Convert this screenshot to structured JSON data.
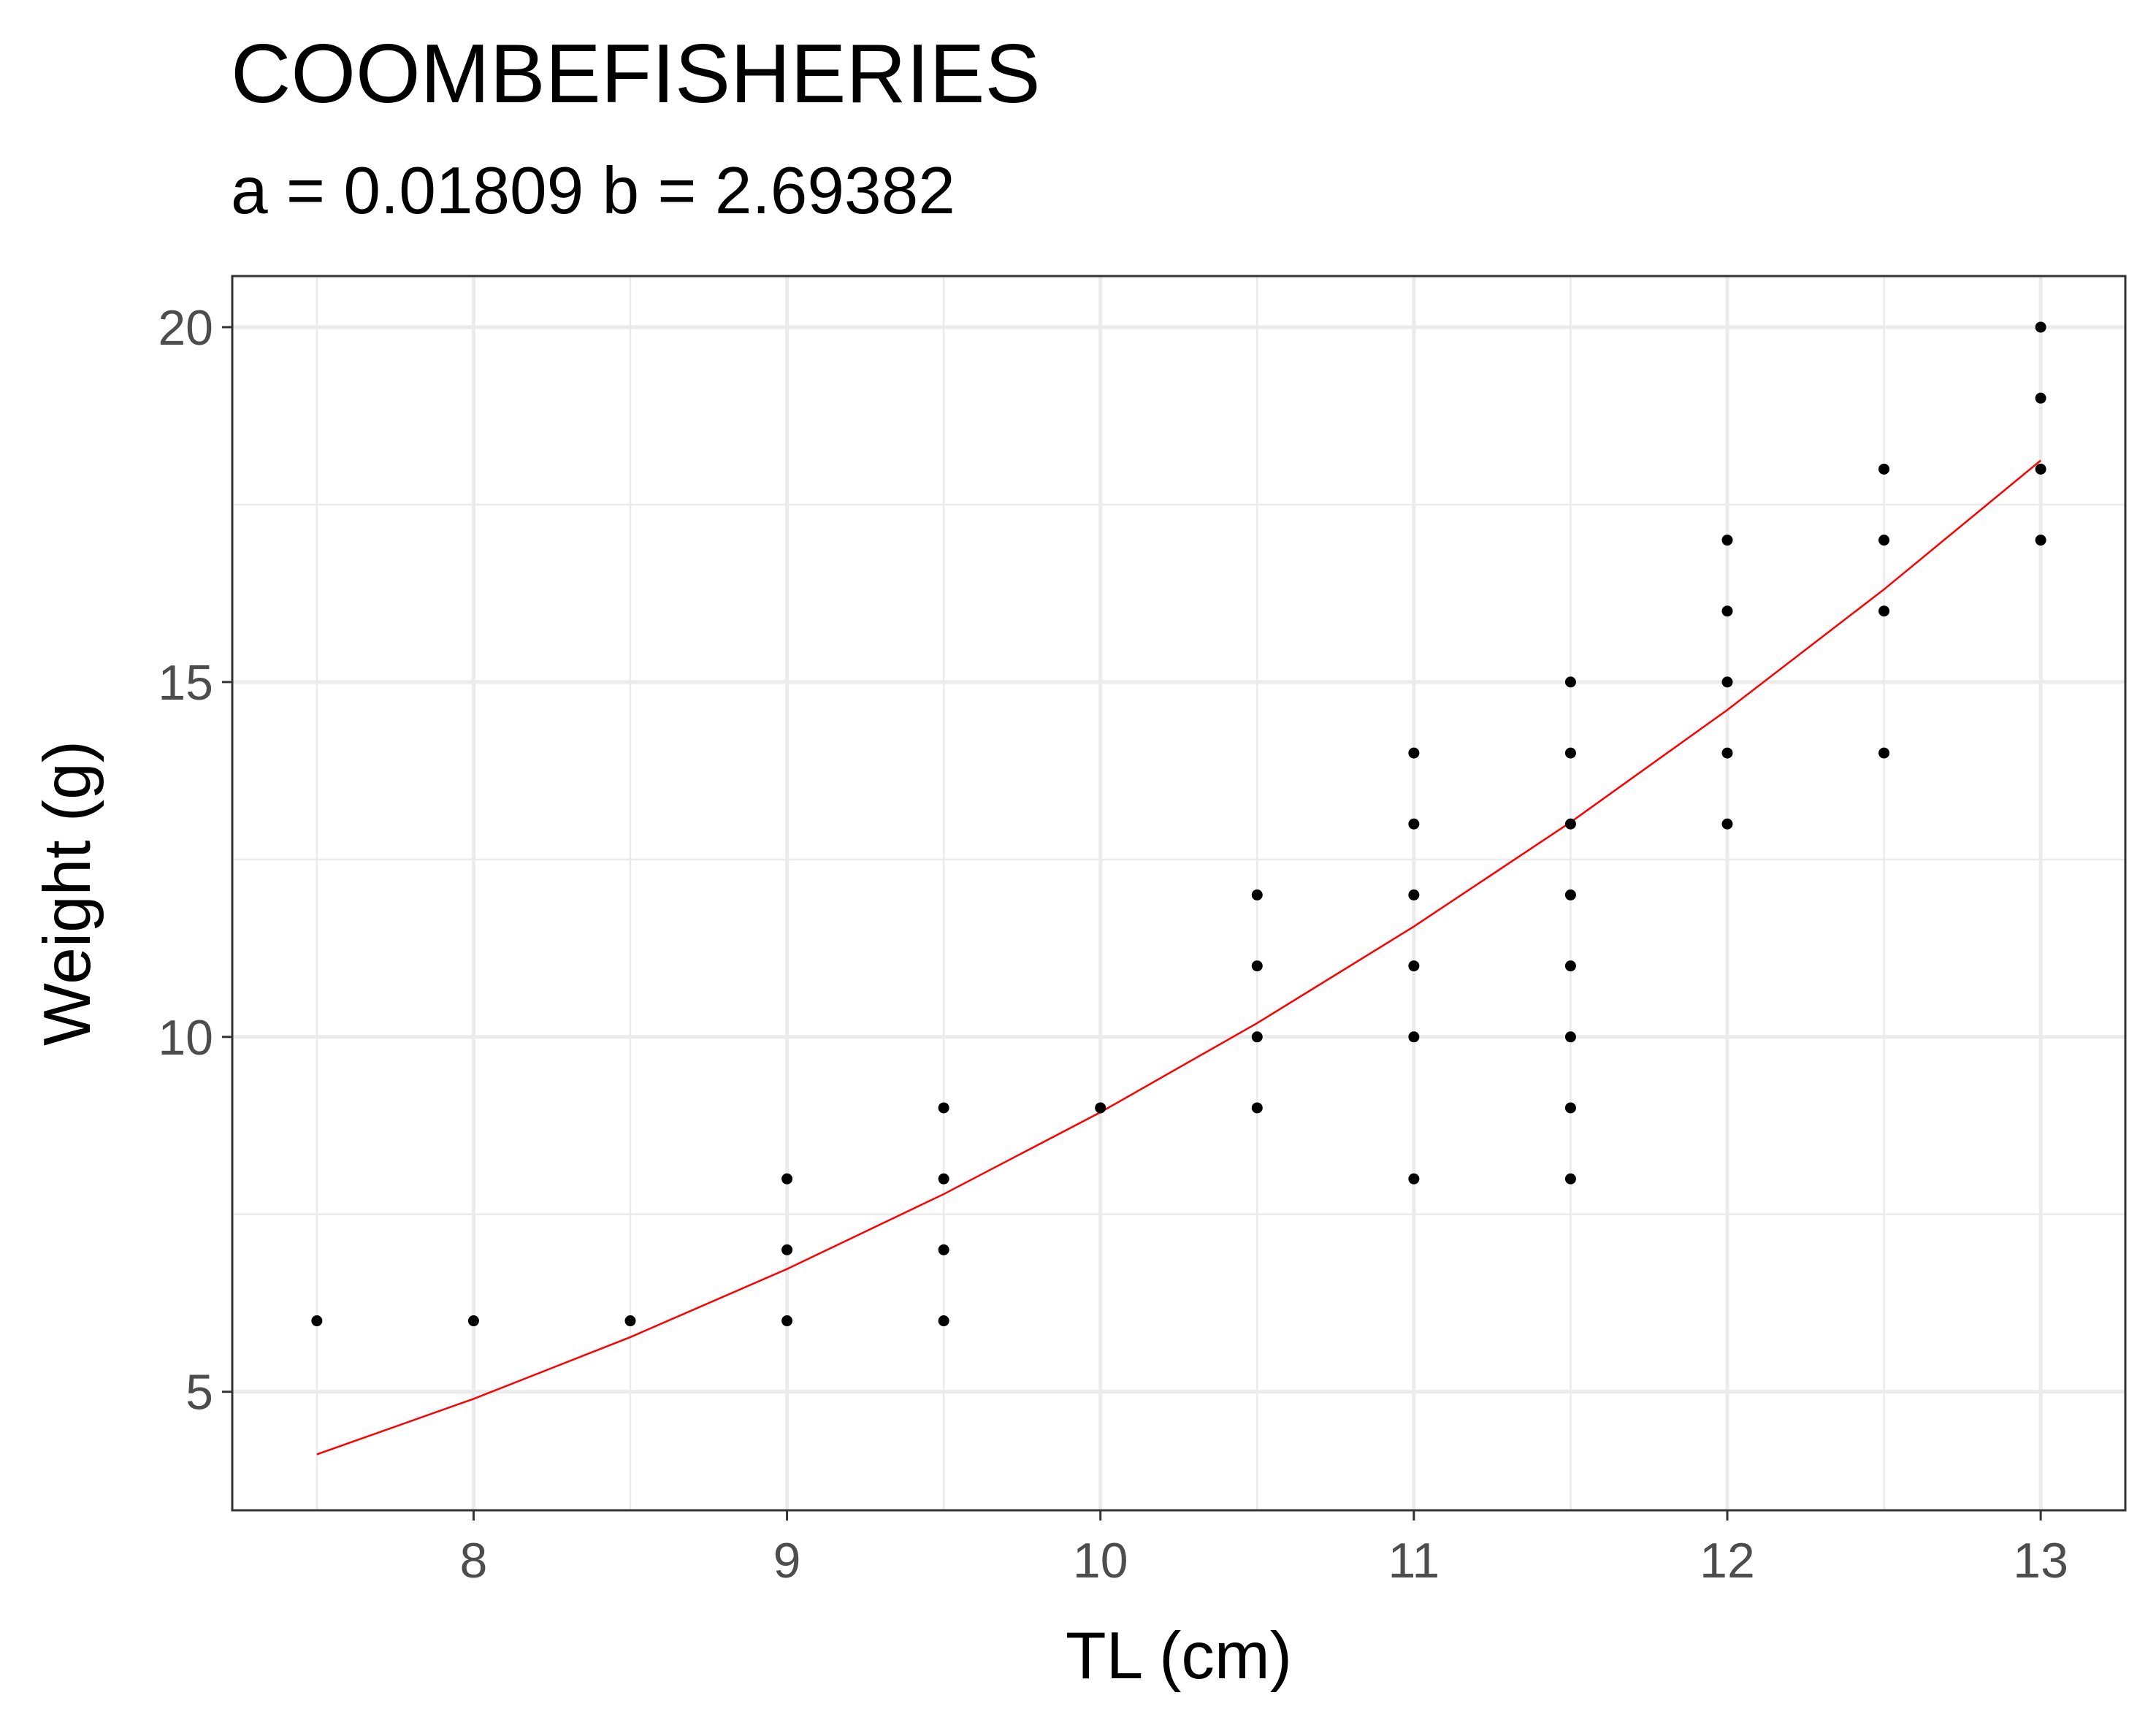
{
  "chart_data": {
    "type": "scatter",
    "title": "COOMBEFISHERIES",
    "subtitle": "a =  0.01809  b = 2.69382",
    "xlabel": "TL (cm)",
    "ylabel": "Weight (g)",
    "xlim": [
      7.23,
      13.27
    ],
    "ylim": [
      3.33,
      20.72
    ],
    "x_ticks": [
      8,
      9,
      10,
      11,
      12,
      13
    ],
    "y_ticks": [
      5,
      10,
      15,
      20
    ],
    "grid": true,
    "colors": {
      "points": "#000000",
      "fit_line": "#ff0000",
      "grid": "#ebebeb",
      "panel_border": "#333333"
    },
    "points": [
      [
        7.5,
        6
      ],
      [
        8,
        6
      ],
      [
        8.5,
        6
      ],
      [
        9,
        8
      ],
      [
        9,
        7
      ],
      [
        9,
        6
      ],
      [
        9.5,
        9
      ],
      [
        9.5,
        8
      ],
      [
        9.5,
        7
      ],
      [
        9.5,
        6
      ],
      [
        10,
        9
      ],
      [
        10.5,
        12
      ],
      [
        10.5,
        11
      ],
      [
        10.5,
        10
      ],
      [
        10.5,
        9
      ],
      [
        11,
        14
      ],
      [
        11,
        13
      ],
      [
        11,
        12
      ],
      [
        11,
        11
      ],
      [
        11,
        10
      ],
      [
        11,
        8
      ],
      [
        11.5,
        15
      ],
      [
        11.5,
        14
      ],
      [
        11.5,
        13
      ],
      [
        11.5,
        12
      ],
      [
        11.5,
        11
      ],
      [
        11.5,
        10
      ],
      [
        11.5,
        9
      ],
      [
        11.5,
        8
      ],
      [
        12,
        17
      ],
      [
        12,
        16
      ],
      [
        12,
        15
      ],
      [
        12,
        14
      ],
      [
        12,
        13
      ],
      [
        12.5,
        18
      ],
      [
        12.5,
        17
      ],
      [
        12.5,
        16
      ],
      [
        12.5,
        14
      ],
      [
        13,
        20
      ],
      [
        13,
        19
      ],
      [
        13,
        18
      ],
      [
        13,
        17
      ]
    ],
    "fit": {
      "a": 0.01809,
      "b": 2.69382,
      "x_values": [
        7.5,
        8,
        8.5,
        9,
        9.5,
        10,
        10.5,
        11,
        11.5,
        12,
        12.5,
        13
      ]
    }
  }
}
